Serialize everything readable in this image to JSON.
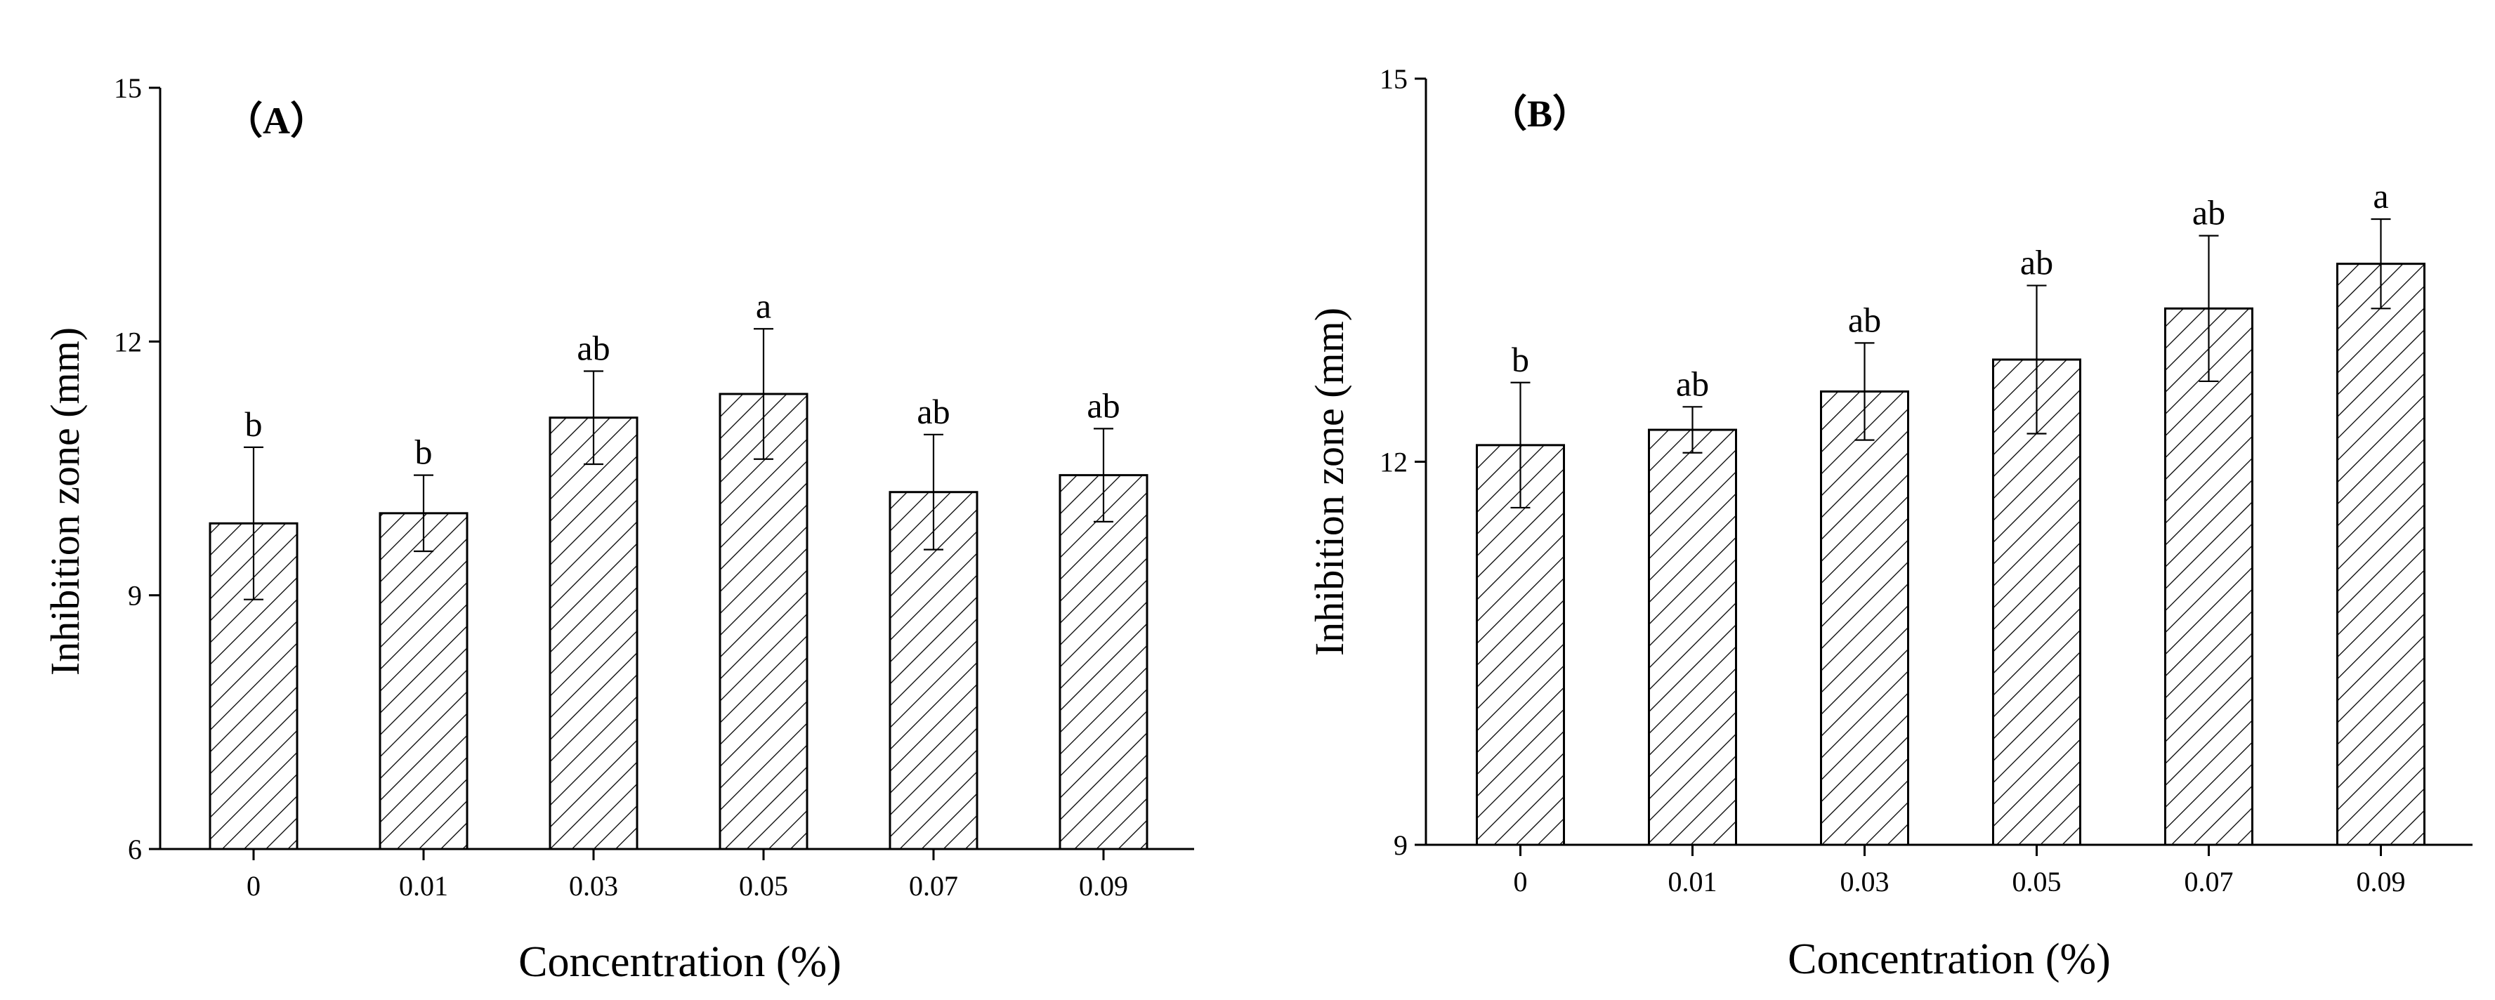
{
  "chart_data": [
    {
      "panel": "(A)",
      "type": "bar",
      "title": "（A）",
      "xlabel": "Concentration (%)",
      "ylabel": "Inhibition zone (mm)",
      "ylim": [
        6,
        15
      ],
      "yticks": [
        "6",
        "9",
        "12",
        "15"
      ],
      "categories": [
        "0",
        "0.01",
        "0.03",
        "0.05",
        "0.07",
        "0.09"
      ],
      "values": [
        9.85,
        9.97,
        11.1,
        11.38,
        10.22,
        10.42
      ],
      "errors": [
        0.9,
        0.45,
        0.55,
        0.77,
        0.68,
        0.55
      ],
      "significance": [
        "b",
        "b",
        "ab",
        "a",
        "ab",
        "ab"
      ],
      "pattern": "diagonal-hatch",
      "grid": false
    },
    {
      "panel": "(B)",
      "type": "bar",
      "title": "（B）",
      "xlabel": "Concentration (%)",
      "ylabel": "Inhibition zone (mm)",
      "ylim": [
        9,
        15
      ],
      "yticks": [
        "9",
        "12",
        "15"
      ],
      "categories": [
        "0",
        "0.01",
        "0.03",
        "0.05",
        "0.07",
        "0.09"
      ],
      "values": [
        12.13,
        12.25,
        12.55,
        12.8,
        13.2,
        13.55
      ],
      "errors": [
        0.49,
        0.18,
        0.38,
        0.58,
        0.57,
        0.35
      ],
      "significance": [
        "b",
        "ab",
        "ab",
        "ab",
        "ab",
        "a"
      ],
      "pattern": "diagonal-hatch",
      "grid": false
    }
  ]
}
